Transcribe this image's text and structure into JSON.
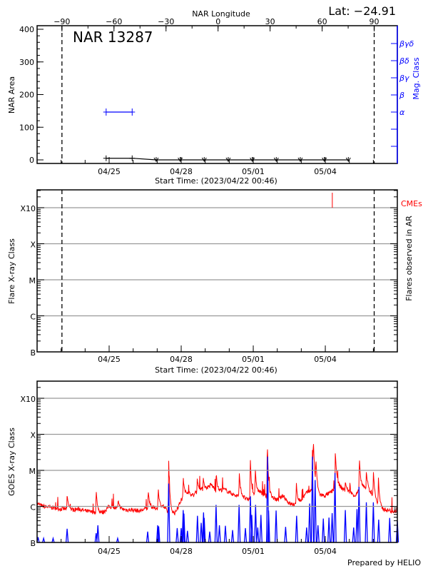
{
  "chart_data": [
    {
      "type": "line",
      "title": "NAR 13287",
      "latitude_label": "Lat: −24.91",
      "top_axis_label": "NAR Longitude",
      "longitude_ticks": [
        "−90",
        "−60",
        "−30",
        "0",
        "30",
        "60",
        "90"
      ],
      "limb_times": [
        "04/23 00:50",
        "05/06 00:50"
      ],
      "ylabel": "NAR Area",
      "ylim": [
        0,
        400
      ],
      "y_ticks": [
        "0",
        "100",
        "200",
        "300",
        "400"
      ],
      "right_axis_label": "Mag. Class",
      "right_axis_ticks": [
        "α",
        "β",
        "βγ",
        "βδ",
        "βγδ"
      ],
      "date_ticks": [
        "04/25",
        "04/28",
        "05/01",
        "05/04"
      ],
      "xlabel": "Start Time: (2023/04/22 00:46)",
      "area_series": [
        {
          "time": "04/24 21:00",
          "area": 5,
          "marker": "plus"
        },
        {
          "time": "04/25 23:00",
          "area": 5,
          "marker": "plus"
        },
        {
          "time": "04/26 23:00",
          "area": 0,
          "marker": "arrow-down"
        },
        {
          "time": "04/27 23:00",
          "area": 0,
          "marker": "arrow-down"
        },
        {
          "time": "04/28 23:00",
          "area": 0,
          "marker": "arrow-down"
        },
        {
          "time": "04/29 23:00",
          "area": 0,
          "marker": "arrow-down"
        },
        {
          "time": "04/30 23:00",
          "area": 0,
          "marker": "arrow-down"
        },
        {
          "time": "05/01 23:00",
          "area": 0,
          "marker": "arrow-down"
        },
        {
          "time": "05/02 23:00",
          "area": 0,
          "marker": "arrow-down"
        },
        {
          "time": "05/03 23:00",
          "area": 0,
          "marker": "arrow-down"
        },
        {
          "time": "05/04 23:00",
          "area": 0,
          "marker": "arrow-down"
        }
      ],
      "mag_class_series": [
        {
          "time": "04/24 21:00",
          "class": "α"
        },
        {
          "time": "04/25 23:00",
          "class": "α"
        }
      ],
      "colors": {
        "area": "#000000",
        "mag_class": "#0000ff"
      }
    },
    {
      "type": "scatter",
      "ylabel": "Flare X-ray Class",
      "right_axis_label": "Flares observed in AR",
      "y_ticks": [
        "B",
        "C",
        "M",
        "X",
        "X10"
      ],
      "date_ticks": [
        "04/25",
        "04/28",
        "05/01",
        "05/04"
      ],
      "xlabel": "Start Time: (2023/04/22 00:46)",
      "grid": true,
      "flares": [],
      "cme_legend": "CMEs",
      "cmes": [
        {
          "time": "05/04 07:00"
        }
      ],
      "limb_times": [
        "04/23 00:50",
        "05/06 00:50"
      ],
      "colors": {
        "cme": "#ff0000",
        "grid": "#999999"
      }
    },
    {
      "type": "line",
      "ylabel": "GOES X-ray Class",
      "y_ticks": [
        "B",
        "C",
        "M",
        "X",
        "X10"
      ],
      "date_ticks": [
        "04/25",
        "04/28",
        "05/01",
        "05/04"
      ],
      "grid": true,
      "footer": "Prepared by HELIO",
      "series": [
        {
          "color": "#ff0000",
          "interval_hours": 6,
          "baseline": [
            "C1.2",
            "C1.0",
            "B9.5",
            "B9.0",
            "B8.5",
            "B8.5",
            "B8.0",
            "B8.5",
            "B7.5",
            "B7.0",
            "B7.0",
            "B6.8",
            "C1.0",
            "B9.0",
            "B8.5",
            "B8.0",
            "B8.0",
            "B7.5",
            "B8.5",
            "B9.0",
            "B9.0",
            "C1.0",
            "B6.5",
            "B6.5",
            "C1.5",
            "C2.5",
            "C2.0",
            "C3.0",
            "C3.0",
            "C4.0",
            "C2.5",
            "C3.0",
            "C2.5",
            "C2.0",
            "C2.0",
            "C1.5",
            "C2.0",
            "C2.5",
            "C2.0",
            "C1.8",
            "C1.5",
            "C2.0",
            "C1.2",
            "C1.1",
            "C1.5",
            "C2.5",
            "C3.0",
            "C2.0",
            "C2.0",
            "C2.5",
            "C4.0",
            "C3.0",
            "C2.5",
            "C2.0",
            "C3.5",
            "C3.0",
            "C2.0",
            "B9.0",
            "B8.0",
            "B7.5"
          ],
          "peaks": [
            {
              "time": "04/23 06:00",
              "class": "C2.2"
            },
            {
              "time": "04/24 11:00",
              "class": "C3.0"
            },
            {
              "time": "04/25 09:00",
              "class": "C1.6"
            },
            {
              "time": "04/26 15:00",
              "class": "C3.0"
            },
            {
              "time": "04/27 01:00",
              "class": "C3.5"
            },
            {
              "time": "04/27 11:30",
              "class": "M1.9"
            },
            {
              "time": "04/28 02:00",
              "class": "C7.0"
            },
            {
              "time": "04/28 16:00",
              "class": "C6.0"
            },
            {
              "time": "04/28 22:00",
              "class": "C6.5"
            },
            {
              "time": "04/29 11:00",
              "class": "C9.0"
            },
            {
              "time": "04/30 10:00",
              "class": "C9.0"
            },
            {
              "time": "04/30 21:00",
              "class": "M2.5"
            },
            {
              "time": "05/01 02:00",
              "class": "M1.2"
            },
            {
              "time": "05/01 14:00",
              "class": "M7.4"
            },
            {
              "time": "05/02 19:00",
              "class": "C5.0"
            },
            {
              "time": "05/03 11:00",
              "class": "M5.0"
            },
            {
              "time": "05/03 12:00",
              "class": "M7.7"
            },
            {
              "time": "05/03 14:30",
              "class": "M2.3"
            },
            {
              "time": "05/04 10:00",
              "class": "M4.0"
            },
            {
              "time": "05/04 20:00",
              "class": "C5.0"
            },
            {
              "time": "05/05 10:00",
              "class": "M2.5"
            },
            {
              "time": "05/05 17:00",
              "class": "M1.0"
            },
            {
              "time": "05/06 00:00",
              "class": "M1.0"
            },
            {
              "time": "05/06 05:00",
              "class": "C7.0"
            }
          ]
        },
        {
          "color": "#0000ff",
          "peaks": [
            {
              "time": "04/22 01:00",
              "class": "B1.4"
            },
            {
              "time": "04/22 06:30",
              "class": "B1.3"
            },
            {
              "time": "04/22 16:00",
              "class": "B1.3"
            },
            {
              "time": "04/23 06:00",
              "class": "B2.4"
            },
            {
              "time": "04/24 11:00",
              "class": "B1.8"
            },
            {
              "time": "04/24 12:45",
              "class": "B3.0"
            },
            {
              "time": "04/25 08:30",
              "class": "B1.3"
            },
            {
              "time": "04/26 14:30",
              "class": "B2.0"
            },
            {
              "time": "04/27 00:30",
              "class": "B3.0"
            },
            {
              "time": "04/27 01:30",
              "class": "B2.8"
            },
            {
              "time": "04/27 11:30",
              "class": "C4.3"
            },
            {
              "time": "04/27 20:00",
              "class": "B2.5"
            },
            {
              "time": "04/28 00:00",
              "class": "B2.5"
            },
            {
              "time": "04/28 02:00",
              "class": "B7.9"
            },
            {
              "time": "04/28 02:45",
              "class": "B6.3"
            },
            {
              "time": "04/28 06:15",
              "class": "B2.1"
            },
            {
              "time": "04/28 16:15",
              "class": "B5.5"
            },
            {
              "time": "04/28 20:00",
              "class": "B3.5"
            },
            {
              "time": "04/28 22:20",
              "class": "B6.8"
            },
            {
              "time": "04/28 23:00",
              "class": "B4.8"
            },
            {
              "time": "04/29 04:30",
              "class": "B2.0"
            },
            {
              "time": "04/29 10:50",
              "class": "C1.1"
            },
            {
              "time": "04/29 14:10",
              "class": "B3.0"
            },
            {
              "time": "04/29 20:10",
              "class": "B2.9"
            },
            {
              "time": "04/30 03:20",
              "class": "B2.2"
            },
            {
              "time": "04/30 09:50",
              "class": "C1.1"
            },
            {
              "time": "04/30 16:10",
              "class": "B2.5"
            },
            {
              "time": "04/30 21:10",
              "class": "C1.9"
            },
            {
              "time": "04/30 22:30",
              "class": "B5.8"
            },
            {
              "time": "05/01 02:20",
              "class": "C1.1"
            },
            {
              "time": "05/01 04:30",
              "class": "B2.6"
            },
            {
              "time": "05/01 07:40",
              "class": "B5.8"
            },
            {
              "time": "05/01 14:20",
              "class": "M2.4"
            },
            {
              "time": "05/01 15:20",
              "class": "B7.7"
            },
            {
              "time": "05/01 22:50",
              "class": "B7.7"
            },
            {
              "time": "05/02 08:20",
              "class": "B2.7"
            },
            {
              "time": "05/02 19:20",
              "class": "B5.5"
            },
            {
              "time": "05/03 05:20",
              "class": "B2.6"
            },
            {
              "time": "05/03 08:20",
              "class": "C1.2"
            },
            {
              "time": "05/03 11:10",
              "class": "M2.4"
            },
            {
              "time": "05/03 13:50",
              "class": "C5.4"
            },
            {
              "time": "05/03 16:40",
              "class": "B3.0"
            },
            {
              "time": "05/03 22:00",
              "class": "B4.6"
            },
            {
              "time": "05/04 03:40",
              "class": "B4.9"
            },
            {
              "time": "05/04 06:50",
              "class": "B6.5"
            },
            {
              "time": "05/04 09:40",
              "class": "C8.5"
            },
            {
              "time": "05/04 20:00",
              "class": "B7.9"
            },
            {
              "time": "05/05 04:20",
              "class": "B2.6"
            },
            {
              "time": "05/05 07:40",
              "class": "B8.4"
            },
            {
              "time": "05/05 09:40",
              "class": "C3.5"
            },
            {
              "time": "05/05 17:00",
              "class": "C1.3"
            },
            {
              "time": "05/06 00:00",
              "class": "C1.3"
            },
            {
              "time": "05/06 05:20",
              "class": "B4.3"
            },
            {
              "time": "05/06 16:20",
              "class": "B4.8"
            },
            {
              "time": "05/07 00:00",
              "class": "B4.0"
            }
          ]
        }
      ]
    }
  ]
}
